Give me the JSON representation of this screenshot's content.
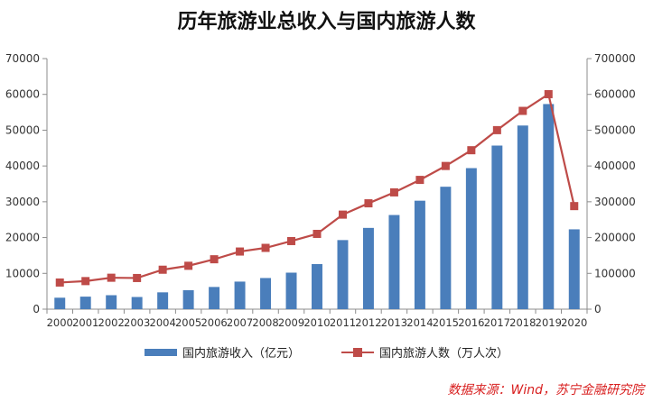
{
  "chart_data": {
    "type": "bar",
    "title": "历年旅游业总收入与国内旅游人数",
    "categories": [
      "2000",
      "2001",
      "2002",
      "2003",
      "2004",
      "2005",
      "2006",
      "2007",
      "2008",
      "2009",
      "2010",
      "2011",
      "2012",
      "2013",
      "2014",
      "2015",
      "2016",
      "2017",
      "2018",
      "2019",
      "2020"
    ],
    "series": [
      {
        "name": "国内旅游收入（亿元）",
        "type": "bar",
        "axis": "left",
        "color": "#4a7ebb",
        "values": [
          3200,
          3500,
          3900,
          3400,
          4700,
          5300,
          6200,
          7700,
          8700,
          10200,
          12600,
          19300,
          22700,
          26300,
          30300,
          34200,
          39400,
          45700,
          51300,
          57300,
          22300
        ]
      },
      {
        "name": "国内旅游人数（万人次）",
        "type": "line",
        "axis": "right",
        "color": "#be4b48",
        "values": [
          74400,
          78400,
          87800,
          87000,
          110200,
          121200,
          139400,
          161000,
          171200,
          190200,
          210300,
          264100,
          295700,
          326200,
          361100,
          400000,
          444000,
          500100,
          553900,
          600600,
          287900
        ]
      }
    ],
    "y_left": {
      "min": 0,
      "max": 70000,
      "ticks": [
        0,
        10000,
        20000,
        30000,
        40000,
        50000,
        60000,
        70000
      ]
    },
    "y_right": {
      "min": 0,
      "max": 700000,
      "ticks": [
        0,
        100000,
        200000,
        300000,
        400000,
        500000,
        600000,
        700000
      ]
    },
    "grid": false,
    "legend_position": "bottom",
    "source_note": "数据来源：Wind，苏宁金融研究院"
  }
}
